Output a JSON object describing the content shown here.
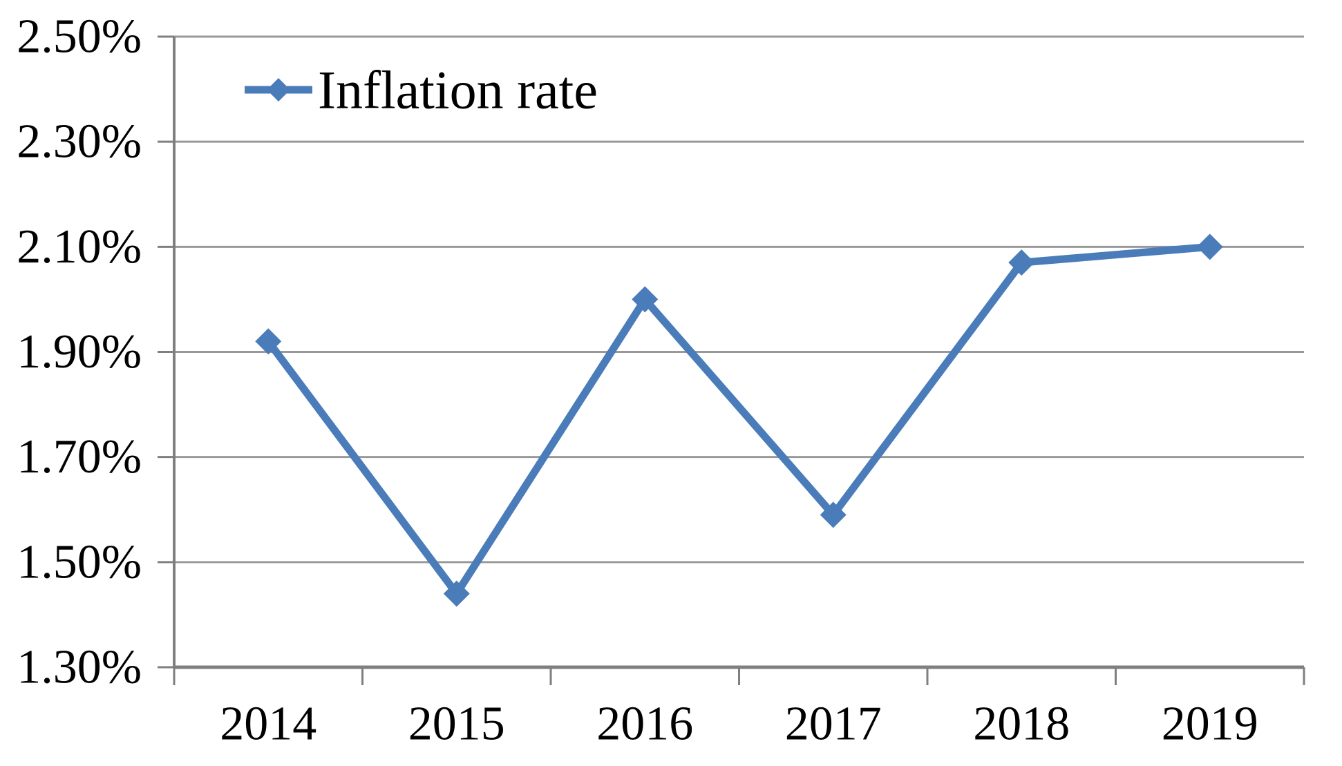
{
  "chart_data": {
    "type": "line",
    "title": "",
    "xlabel": "",
    "ylabel": "",
    "categories": [
      "2014",
      "2015",
      "2016",
      "2017",
      "2018",
      "2019"
    ],
    "series": [
      {
        "name": "Inflation rate",
        "values": [
          1.92,
          1.44,
          2.0,
          1.59,
          2.07,
          2.1
        ]
      }
    ],
    "ylim": [
      1.3,
      2.5
    ],
    "ytick_step": 0.2,
    "ytick_labels": [
      "1.30%",
      "1.50%",
      "1.70%",
      "1.90%",
      "2.10%",
      "2.30%",
      "2.50%"
    ],
    "grid": true,
    "legend": {
      "label": "Inflation rate",
      "position": "top-left-inside",
      "marker": "diamond"
    },
    "colors": {
      "series": "#4a7cba",
      "gridline": "#999999",
      "axis": "#7f7f7f",
      "text": "#000000",
      "background": "#ffffff"
    }
  }
}
